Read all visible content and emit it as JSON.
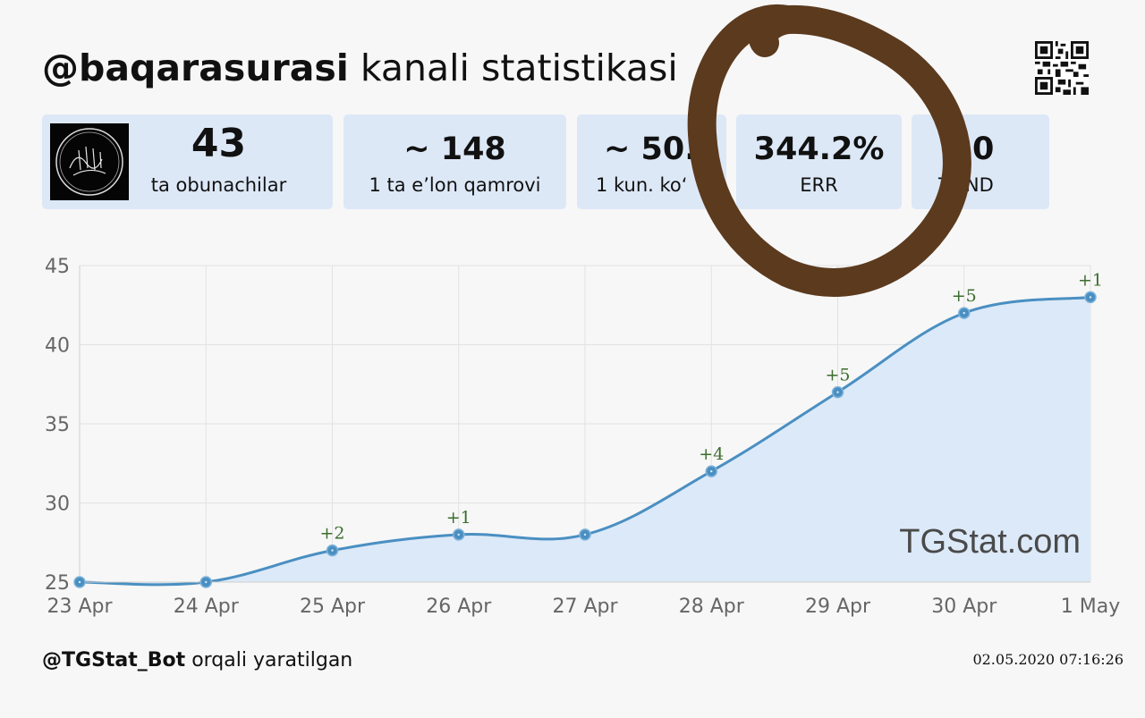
{
  "header": {
    "channel": "@baqarasurasi",
    "title_rest": "kanali statistikasi"
  },
  "stats": [
    {
      "value": "43",
      "label": "ta obunachilar"
    },
    {
      "value": "~ 148",
      "label": "1 ta e’lon qamrovi"
    },
    {
      "value": "~ 50.",
      "label": "1 kun. ko‘"
    },
    {
      "value": "344.2%",
      "label": "ERR"
    },
    {
      "value": "0",
      "label": "T. IND"
    }
  ],
  "chart_data": {
    "type": "area",
    "categories": [
      "23 Apr",
      "24 Apr",
      "25 Apr",
      "26 Apr",
      "27 Apr",
      "28 Apr",
      "29 Apr",
      "30 Apr",
      "1 May"
    ],
    "values": [
      25,
      25,
      27,
      28,
      28,
      32,
      37,
      42,
      43
    ],
    "annotations": [
      "",
      "",
      "+2",
      "+1",
      "",
      "+4",
      "+5",
      "+5",
      "+1"
    ],
    "yticks": [
      25,
      30,
      35,
      40,
      45
    ],
    "ylim": [
      25,
      45
    ],
    "grid": true,
    "watermark": "TGStat.com",
    "colors": {
      "line": "#4a8fc2",
      "fill": "#dce9f8",
      "annotation": "#3b6e2e"
    }
  },
  "footer": {
    "bot": "@TGStat_Bot",
    "created_text": "orqali yaratilgan",
    "timestamp": "02.05.2020 07:16:26"
  },
  "icons": {
    "qr": "qr-code-icon",
    "avatar": "channel-avatar"
  },
  "overlay_color": "#5c3a1e"
}
